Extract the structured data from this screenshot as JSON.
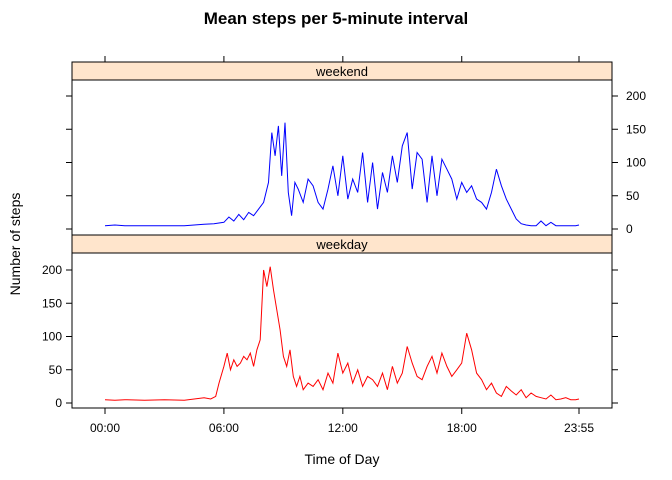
{
  "chart_data": {
    "type": "line",
    "title": "Mean steps per 5-minute interval",
    "xlabel": "Time of Day",
    "ylabel": "Number of steps",
    "xlim": [
      0,
      1435
    ],
    "ylim": [
      0,
      210
    ],
    "x_ticks": [
      {
        "value": 0,
        "label": "00:00"
      },
      {
        "value": 360,
        "label": "06:00"
      },
      {
        "value": 720,
        "label": "12:00"
      },
      {
        "value": 1080,
        "label": "18:00"
      },
      {
        "value": 1435,
        "label": "23:55"
      }
    ],
    "y_ticks": [
      0,
      50,
      100,
      150,
      200
    ],
    "x_unit": "minutes after midnight",
    "panels": [
      {
        "strip": "weekend",
        "color": "#0000ff",
        "y_tick_side": "right",
        "series": {
          "x": [
            0,
            30,
            60,
            120,
            180,
            240,
            300,
            330,
            360,
            375,
            390,
            405,
            420,
            435,
            450,
            465,
            480,
            495,
            505,
            515,
            525,
            535,
            545,
            555,
            565,
            575,
            585,
            600,
            615,
            630,
            645,
            660,
            675,
            690,
            705,
            720,
            735,
            750,
            765,
            780,
            795,
            810,
            825,
            840,
            855,
            870,
            885,
            900,
            915,
            930,
            945,
            960,
            975,
            990,
            1005,
            1020,
            1035,
            1050,
            1065,
            1080,
            1095,
            1110,
            1125,
            1140,
            1155,
            1170,
            1185,
            1200,
            1215,
            1230,
            1245,
            1260,
            1275,
            1290,
            1305,
            1320,
            1335,
            1350,
            1365,
            1380,
            1395,
            1410,
            1425,
            1435
          ],
          "y": [
            5,
            6,
            5,
            5,
            5,
            5,
            7,
            8,
            10,
            18,
            12,
            22,
            14,
            25,
            20,
            30,
            40,
            70,
            145,
            110,
            155,
            80,
            160,
            55,
            20,
            70,
            60,
            40,
            75,
            65,
            40,
            30,
            60,
            95,
            50,
            110,
            45,
            75,
            55,
            115,
            40,
            100,
            30,
            85,
            55,
            110,
            70,
            125,
            145,
            60,
            115,
            105,
            40,
            110,
            50,
            105,
            90,
            75,
            45,
            70,
            55,
            65,
            45,
            40,
            30,
            55,
            90,
            65,
            45,
            30,
            15,
            8,
            6,
            5,
            5,
            12,
            5,
            10,
            5,
            5,
            5,
            5,
            5,
            6
          ]
        }
      },
      {
        "strip": "weekday",
        "color": "#ff0000",
        "y_tick_side": "left",
        "series": {
          "x": [
            0,
            30,
            60,
            120,
            180,
            240,
            300,
            320,
            335,
            345,
            360,
            370,
            380,
            390,
            400,
            410,
            420,
            430,
            440,
            450,
            460,
            470,
            480,
            490,
            500,
            510,
            520,
            530,
            540,
            550,
            560,
            570,
            580,
            590,
            600,
            615,
            630,
            645,
            660,
            675,
            690,
            705,
            720,
            735,
            750,
            765,
            780,
            795,
            810,
            825,
            840,
            855,
            870,
            885,
            900,
            915,
            930,
            945,
            960,
            975,
            990,
            1005,
            1020,
            1035,
            1050,
            1065,
            1080,
            1095,
            1110,
            1125,
            1140,
            1155,
            1170,
            1185,
            1200,
            1215,
            1230,
            1245,
            1260,
            1275,
            1290,
            1305,
            1320,
            1335,
            1350,
            1365,
            1380,
            1395,
            1410,
            1425,
            1435
          ],
          "y": [
            5,
            4,
            5,
            4,
            5,
            4,
            8,
            6,
            10,
            30,
            55,
            75,
            50,
            65,
            55,
            60,
            70,
            65,
            75,
            55,
            80,
            95,
            200,
            175,
            205,
            170,
            140,
            110,
            70,
            55,
            80,
            40,
            25,
            40,
            20,
            30,
            25,
            35,
            20,
            45,
            30,
            75,
            45,
            60,
            30,
            50,
            25,
            40,
            35,
            25,
            45,
            20,
            55,
            30,
            45,
            85,
            60,
            40,
            35,
            55,
            70,
            45,
            75,
            55,
            40,
            50,
            60,
            105,
            80,
            45,
            35,
            20,
            30,
            15,
            10,
            25,
            18,
            12,
            20,
            8,
            15,
            10,
            8,
            6,
            12,
            5,
            6,
            8,
            5,
            5,
            6
          ]
        }
      }
    ]
  }
}
